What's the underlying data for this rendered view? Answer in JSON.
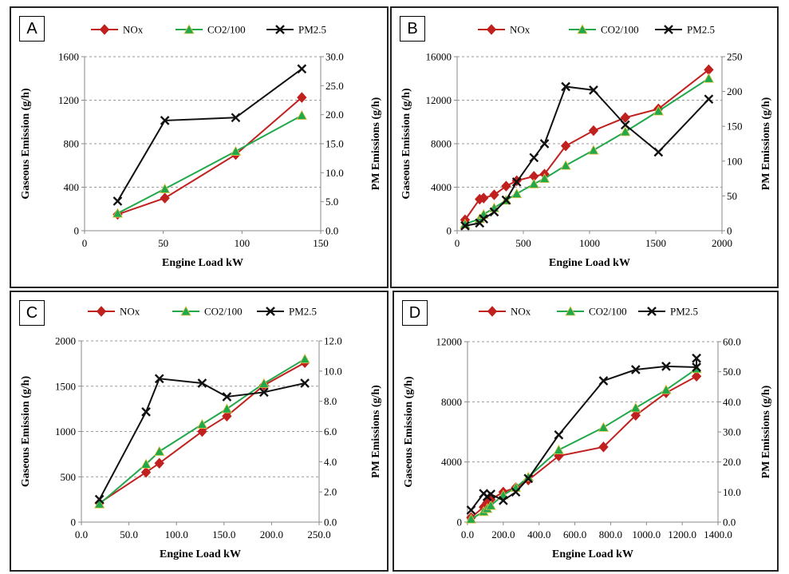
{
  "chart_data": [
    {
      "panel_label": "A",
      "type": "line",
      "xlabel": "Engine Load kW",
      "ylabel": "Gaseous Emission (g/h)",
      "y2label": "PM Emissions (g/h)",
      "xlim": [
        0,
        150
      ],
      "ylim": [
        0,
        1600
      ],
      "y2lim": [
        0,
        30
      ],
      "xticks": [
        "0",
        "50",
        "100",
        "150"
      ],
      "yticks": [
        "0",
        "400",
        "800",
        "1200",
        "1600"
      ],
      "y2ticks": [
        "0.0",
        "5.0",
        "10.0",
        "15.0",
        "20.0",
        "25.0",
        "30.0"
      ],
      "grid": "horizontal dashed",
      "legend_position": "top",
      "series": [
        {
          "name": "NOx",
          "axis": "left",
          "color": "#c0211f",
          "marker": "diamond",
          "x": [
            21,
            51,
            96,
            138
          ],
          "y": [
            150,
            300,
            700,
            1225
          ]
        },
        {
          "name": "CO2/100",
          "axis": "left",
          "color": "#21a84b",
          "marker": "triangle",
          "x": [
            21,
            51,
            96,
            138
          ],
          "y": [
            160,
            385,
            730,
            1060
          ]
        },
        {
          "name": "PM2.5",
          "axis": "right",
          "color": "#111111",
          "marker": "x",
          "x": [
            21,
            51,
            96,
            138
          ],
          "y": [
            5.1,
            19.0,
            19.5,
            27.9
          ]
        }
      ]
    },
    {
      "panel_label": "B",
      "type": "line",
      "xlabel": "Engine Load kW",
      "ylabel": "Gaseous Emission (g/h)",
      "y2label": "PM Emissions (g/h)",
      "xlim": [
        0,
        2000
      ],
      "ylim": [
        0,
        16000
      ],
      "y2lim": [
        0,
        250
      ],
      "xticks": [
        "0",
        "500",
        "1000",
        "1500",
        "2000"
      ],
      "yticks": [
        "0",
        "4000",
        "8000",
        "12000",
        "16000"
      ],
      "y2ticks": [
        "0",
        "50",
        "100",
        "150",
        "200",
        "250"
      ],
      "grid": "horizontal dashed",
      "legend_position": "top",
      "series": [
        {
          "name": "NOx",
          "axis": "left",
          "color": "#c0211f",
          "marker": "diamond",
          "x": [
            60,
            170,
            200,
            280,
            370,
            450,
            580,
            660,
            820,
            1030,
            1270,
            1520,
            1900
          ],
          "y": [
            1000,
            2900,
            3000,
            3300,
            4100,
            4600,
            5000,
            5200,
            7800,
            9200,
            10400,
            11200,
            14800
          ]
        },
        {
          "name": "CO2/100",
          "axis": "left",
          "color": "#21a84b",
          "marker": "triangle",
          "x": [
            60,
            170,
            200,
            280,
            370,
            450,
            580,
            660,
            820,
            1030,
            1270,
            1520,
            1900
          ],
          "y": [
            600,
            1100,
            1500,
            2100,
            2800,
            3400,
            4300,
            4800,
            6000,
            7400,
            9100,
            11000,
            14000
          ]
        },
        {
          "name": "PM2.5",
          "axis": "right",
          "color": "#111111",
          "marker": "x",
          "x": [
            60,
            170,
            200,
            280,
            370,
            450,
            580,
            660,
            820,
            1030,
            1270,
            1520,
            1900
          ],
          "y": [
            7,
            11,
            17,
            27,
            44,
            70,
            105,
            125,
            207,
            202,
            152,
            113,
            189
          ]
        }
      ]
    },
    {
      "panel_label": "C",
      "type": "line",
      "xlabel": "Engine Load kW",
      "ylabel": "Gaseous Emission (g/h)",
      "y2label": "PM Emissions (g/h)",
      "xlim": [
        0,
        250
      ],
      "ylim": [
        0,
        2000
      ],
      "y2lim": [
        0,
        12
      ],
      "xticks": [
        "0.0",
        "50.0",
        "100.0",
        "150.0",
        "200.0",
        "250.0"
      ],
      "yticks": [
        "0",
        "500",
        "1000",
        "1500",
        "2000"
      ],
      "y2ticks": [
        "0.0",
        "2.0",
        "4.0",
        "6.0",
        "8.0",
        "10.0",
        "12.0"
      ],
      "grid": "horizontal dashed",
      "legend_position": "top",
      "series": [
        {
          "name": "NOx",
          "axis": "left",
          "color": "#c0211f",
          "marker": "diamond",
          "x": [
            19,
            68,
            82,
            127,
            153,
            192,
            235
          ],
          "y": [
            210,
            550,
            650,
            1000,
            1170,
            1510,
            1760
          ]
        },
        {
          "name": "CO2/100",
          "axis": "left",
          "color": "#21a84b",
          "marker": "triangle",
          "x": [
            19,
            68,
            82,
            127,
            153,
            192,
            235
          ],
          "y": [
            200,
            640,
            780,
            1080,
            1250,
            1530,
            1800
          ]
        },
        {
          "name": "PM2.5",
          "axis": "right",
          "color": "#111111",
          "marker": "x",
          "x": [
            19,
            68,
            82,
            127,
            153,
            192,
            235
          ],
          "y": [
            1.5,
            7.3,
            9.5,
            9.2,
            8.3,
            8.6,
            9.2
          ]
        }
      ]
    },
    {
      "panel_label": "D",
      "type": "line",
      "xlabel": "Engine Load kW",
      "ylabel": "Gaseous Emission (g/h)",
      "y2label": "PM Emissions (g/h)",
      "xlim": [
        0,
        1400
      ],
      "ylim": [
        0,
        12000
      ],
      "y2lim": [
        0,
        60
      ],
      "xticks": [
        "0.0",
        "200.0",
        "400.0",
        "600.0",
        "800.0",
        "1000.0",
        "1200.0",
        "1400.0"
      ],
      "yticks": [
        "0",
        "4000",
        "8000",
        "12000"
      ],
      "y2ticks": [
        "0.0",
        "10.0",
        "20.0",
        "30.0",
        "40.0",
        "50.0",
        "60.0"
      ],
      "grid": "horizontal dashed",
      "legend_position": "top",
      "series": [
        {
          "name": "NOx",
          "axis": "left",
          "color": "#c0211f",
          "marker": "diamond",
          "x": [
            20,
            90,
            110,
            130,
            200,
            270,
            340,
            510,
            760,
            940,
            1110,
            1280
          ],
          "y": [
            300,
            1000,
            1300,
            1500,
            2000,
            2300,
            2800,
            4400,
            5000,
            7100,
            8600,
            9700
          ]
        },
        {
          "name": "CO2/100",
          "axis": "left",
          "color": "#21a84b",
          "marker": "triangle",
          "x": [
            20,
            90,
            110,
            130,
            200,
            270,
            340,
            510,
            760,
            940,
            1110,
            1280
          ],
          "y": [
            200,
            700,
            900,
            1100,
            1800,
            2300,
            3000,
            4800,
            6300,
            7600,
            8800,
            10200
          ]
        },
        {
          "name": "PM2.5",
          "axis": "right",
          "color": "#111111",
          "marker": "x",
          "x": [
            20,
            90,
            110,
            130,
            200,
            270,
            340,
            510,
            760,
            940,
            1110,
            1280,
            1280
          ],
          "y": [
            4,
            9.5,
            8.5,
            9.3,
            7.2,
            10.0,
            14.5,
            29,
            47,
            50.7,
            51.8,
            51.5,
            54.5
          ]
        }
      ]
    }
  ]
}
